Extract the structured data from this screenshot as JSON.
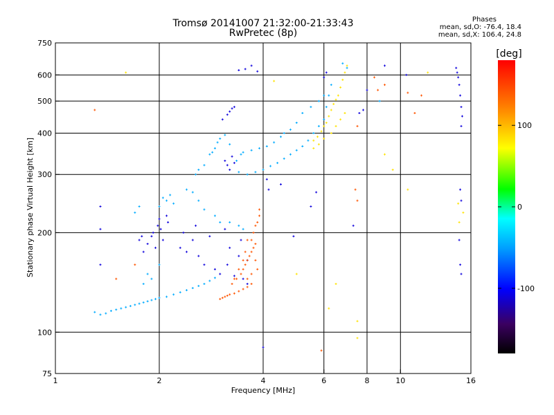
{
  "header": {
    "title_line1": "Tromsø 20141007 21:32:00-21:33:43",
    "title_line2": "RwPretec (8p)",
    "stats_title": "Phases",
    "stats_o": "mean, sd,O: -76.4, 18.4",
    "stats_x": "mean, sd,X: 106.4, 24.8"
  },
  "chart_data": {
    "type": "scatter",
    "xlabel": "Frequency [MHz]",
    "ylabel": "Stationary phase Virtual Height [km]",
    "x_scale": "log",
    "y_scale": "log",
    "xlim": [
      1,
      16
    ],
    "ylim": [
      75,
      750
    ],
    "x_ticks": [
      1,
      2,
      4,
      6,
      8,
      10,
      16
    ],
    "x_tick_labels": [
      "1",
      "2",
      "4",
      "6",
      "8",
      "10",
      "16"
    ],
    "x_gridlines": [
      2,
      4,
      6,
      8,
      10
    ],
    "y_ticks": [
      75,
      100,
      200,
      300,
      400,
      500,
      600,
      750
    ],
    "y_tick_labels": [
      "75",
      "100",
      "200",
      "300",
      "400",
      "500",
      "600",
      "750"
    ],
    "y_gridlines": [
      100,
      200,
      300,
      400,
      500,
      600
    ],
    "grid": true,
    "colorbar": {
      "label": "[deg]",
      "min": -180,
      "max": 180,
      "ticks": [
        100,
        0,
        -100
      ],
      "tick_labels": [
        "100",
        "0",
        "-100"
      ],
      "colors": [
        "#000000",
        "#3b0060",
        "#0000ff",
        "#00a0ff",
        "#00ffff",
        "#00ff00",
        "#ffff00",
        "#ff8000",
        "#ff0000"
      ]
    },
    "series": [
      {
        "color_value": -100,
        "points": [
          [
            1.35,
            240
          ],
          [
            1.35,
            205
          ],
          [
            1.35,
            160
          ],
          [
            1.75,
            190
          ],
          [
            1.78,
            195
          ],
          [
            1.8,
            175
          ],
          [
            1.85,
            185
          ],
          [
            1.9,
            195
          ],
          [
            1.92,
            200
          ],
          [
            1.95,
            180
          ],
          [
            1.98,
            210
          ],
          [
            2.0,
            220
          ],
          [
            2.02,
            205
          ],
          [
            2.05,
            190
          ],
          [
            2.1,
            225
          ],
          [
            2.12,
            215
          ],
          [
            2.3,
            180
          ],
          [
            2.35,
            200
          ],
          [
            2.4,
            175
          ],
          [
            2.5,
            190
          ],
          [
            2.55,
            210
          ],
          [
            2.6,
            170
          ],
          [
            2.7,
            160
          ],
          [
            2.8,
            195
          ],
          [
            2.9,
            155
          ],
          [
            3.0,
            150
          ],
          [
            3.1,
            205
          ],
          [
            3.15,
            160
          ],
          [
            3.2,
            180
          ],
          [
            3.3,
            148
          ],
          [
            3.4,
            170
          ],
          [
            3.45,
            190
          ],
          [
            3.5,
            145
          ],
          [
            3.6,
            165
          ],
          [
            3.6,
            140
          ],
          [
            3.1,
            330
          ],
          [
            3.15,
            320
          ],
          [
            3.2,
            310
          ],
          [
            3.25,
            340
          ],
          [
            3.3,
            325
          ],
          [
            3.05,
            440
          ],
          [
            3.15,
            455
          ],
          [
            3.2,
            465
          ],
          [
            3.25,
            475
          ],
          [
            3.3,
            480
          ],
          [
            3.4,
            620
          ],
          [
            3.55,
            625
          ],
          [
            3.7,
            640
          ],
          [
            3.85,
            615
          ],
          [
            4.1,
            290
          ],
          [
            4.15,
            270
          ],
          [
            4.5,
            280
          ],
          [
            4.9,
            195
          ],
          [
            5.5,
            240
          ],
          [
            5.7,
            265
          ],
          [
            6.0,
            590
          ],
          [
            6.1,
            610
          ],
          [
            7.3,
            210
          ],
          [
            7.6,
            460
          ],
          [
            7.8,
            470
          ],
          [
            8.0,
            540
          ],
          [
            9.0,
            640
          ],
          [
            10.4,
            600
          ],
          [
            14.5,
            630
          ],
          [
            14.6,
            610
          ],
          [
            14.7,
            590
          ],
          [
            14.8,
            560
          ],
          [
            14.9,
            520
          ],
          [
            15.0,
            480
          ],
          [
            15.1,
            450
          ],
          [
            15.0,
            420
          ],
          [
            14.9,
            270
          ],
          [
            15.0,
            250
          ],
          [
            14.8,
            190
          ],
          [
            14.9,
            160
          ],
          [
            15.0,
            150
          ],
          [
            4.0,
            90
          ]
        ]
      },
      {
        "color_value": -40,
        "points": [
          [
            1.3,
            115
          ],
          [
            1.35,
            113
          ],
          [
            1.4,
            114
          ],
          [
            1.45,
            116
          ],
          [
            1.5,
            117
          ],
          [
            1.55,
            118
          ],
          [
            1.6,
            119
          ],
          [
            1.65,
            120
          ],
          [
            1.7,
            121
          ],
          [
            1.75,
            122
          ],
          [
            1.8,
            123
          ],
          [
            1.85,
            124
          ],
          [
            1.9,
            125
          ],
          [
            1.95,
            126
          ],
          [
            2.0,
            127
          ],
          [
            2.1,
            128
          ],
          [
            2.2,
            130
          ],
          [
            2.3,
            132
          ],
          [
            2.4,
            134
          ],
          [
            2.5,
            136
          ],
          [
            2.6,
            138
          ],
          [
            2.7,
            140
          ],
          [
            2.8,
            143
          ],
          [
            2.9,
            146
          ],
          [
            1.8,
            140
          ],
          [
            1.85,
            150
          ],
          [
            1.9,
            145
          ],
          [
            2.0,
            160
          ],
          [
            2.05,
            255
          ],
          [
            2.1,
            250
          ],
          [
            2.15,
            260
          ],
          [
            2.2,
            245
          ],
          [
            2.0,
            240
          ],
          [
            1.7,
            230
          ],
          [
            1.75,
            240
          ],
          [
            2.55,
            300
          ],
          [
            2.6,
            310
          ],
          [
            2.7,
            320
          ],
          [
            2.8,
            345
          ],
          [
            2.85,
            350
          ],
          [
            2.9,
            360
          ],
          [
            2.95,
            375
          ],
          [
            3.0,
            385
          ],
          [
            3.1,
            395
          ],
          [
            3.2,
            370
          ],
          [
            3.4,
            305
          ],
          [
            3.6,
            300
          ],
          [
            3.8,
            305
          ],
          [
            4.0,
            310
          ],
          [
            4.2,
            318
          ],
          [
            4.4,
            325
          ],
          [
            4.6,
            335
          ],
          [
            4.8,
            345
          ],
          [
            5.0,
            355
          ],
          [
            5.2,
            365
          ],
          [
            5.4,
            380
          ],
          [
            5.6,
            400
          ],
          [
            5.8,
            420
          ],
          [
            6.0,
            440
          ],
          [
            6.1,
            480
          ],
          [
            6.2,
            520
          ],
          [
            6.3,
            560
          ],
          [
            3.35,
            330
          ],
          [
            3.45,
            345
          ],
          [
            3.5,
            350
          ],
          [
            3.7,
            355
          ],
          [
            3.9,
            360
          ],
          [
            4.1,
            365
          ],
          [
            4.3,
            375
          ],
          [
            4.5,
            390
          ],
          [
            4.6,
            400
          ],
          [
            4.8,
            410
          ],
          [
            5.0,
            430
          ],
          [
            5.2,
            460
          ],
          [
            5.5,
            480
          ],
          [
            5.8,
            500
          ],
          [
            6.0,
            520
          ],
          [
            2.4,
            270
          ],
          [
            2.5,
            265
          ],
          [
            2.6,
            250
          ],
          [
            2.7,
            235
          ],
          [
            2.9,
            225
          ],
          [
            3.0,
            215
          ],
          [
            3.2,
            215
          ],
          [
            3.4,
            210
          ],
          [
            3.5,
            205
          ],
          [
            6.8,
            650
          ],
          [
            7.0,
            630
          ],
          [
            8.7,
            500
          ]
        ]
      },
      {
        "color_value": 100,
        "points": [
          [
            5.6,
            380
          ],
          [
            5.75,
            390
          ],
          [
            5.9,
            405
          ],
          [
            6.0,
            420
          ],
          [
            6.1,
            430
          ],
          [
            6.2,
            450
          ],
          [
            6.3,
            470
          ],
          [
            6.4,
            490
          ],
          [
            6.5,
            505
          ],
          [
            6.6,
            520
          ],
          [
            6.7,
            550
          ],
          [
            6.8,
            580
          ],
          [
            6.9,
            610
          ],
          [
            7.0,
            640
          ],
          [
            5.6,
            360
          ],
          [
            5.8,
            370
          ],
          [
            6.0,
            385
          ],
          [
            6.3,
            400
          ],
          [
            6.5,
            420
          ],
          [
            6.7,
            440
          ],
          [
            6.9,
            460
          ],
          [
            1.6,
            610
          ],
          [
            4.3,
            575
          ],
          [
            5.0,
            150
          ],
          [
            6.5,
            140
          ],
          [
            6.2,
            118
          ],
          [
            7.5,
            108
          ],
          [
            7.5,
            96
          ],
          [
            9.0,
            345
          ],
          [
            9.5,
            310
          ],
          [
            10.5,
            270
          ],
          [
            12.0,
            610
          ],
          [
            14.7,
            245
          ],
          [
            14.8,
            215
          ],
          [
            15.2,
            230
          ]
        ]
      },
      {
        "color_value": 150,
        "points": [
          [
            3.0,
            126
          ],
          [
            3.05,
            127
          ],
          [
            3.1,
            128
          ],
          [
            3.15,
            129
          ],
          [
            3.2,
            130
          ],
          [
            3.3,
            131
          ],
          [
            3.4,
            133
          ],
          [
            3.5,
            135
          ],
          [
            3.6,
            137
          ],
          [
            3.7,
            140
          ],
          [
            3.25,
            140
          ],
          [
            3.35,
            145
          ],
          [
            3.45,
            150
          ],
          [
            3.5,
            155
          ],
          [
            3.55,
            160
          ],
          [
            3.6,
            165
          ],
          [
            3.65,
            170
          ],
          [
            3.7,
            175
          ],
          [
            3.75,
            180
          ],
          [
            3.8,
            185
          ],
          [
            3.7,
            190
          ],
          [
            3.75,
            200
          ],
          [
            3.8,
            210
          ],
          [
            3.85,
            215
          ],
          [
            3.9,
            225
          ],
          [
            3.9,
            235
          ],
          [
            3.6,
            190
          ],
          [
            3.55,
            175
          ],
          [
            3.5,
            165
          ],
          [
            3.4,
            155
          ],
          [
            3.3,
            145
          ],
          [
            3.85,
            155
          ],
          [
            3.8,
            165
          ],
          [
            3.7,
            150
          ],
          [
            3.6,
            145
          ],
          [
            5.9,
            88
          ],
          [
            7.5,
            420
          ],
          [
            7.5,
            250
          ],
          [
            7.4,
            270
          ],
          [
            8.4,
            590
          ],
          [
            8.6,
            540
          ],
          [
            9.0,
            560
          ],
          [
            10.5,
            530
          ],
          [
            11.0,
            460
          ],
          [
            11.5,
            520
          ],
          [
            1.7,
            160
          ],
          [
            1.3,
            470
          ],
          [
            1.5,
            145
          ]
        ]
      }
    ]
  }
}
